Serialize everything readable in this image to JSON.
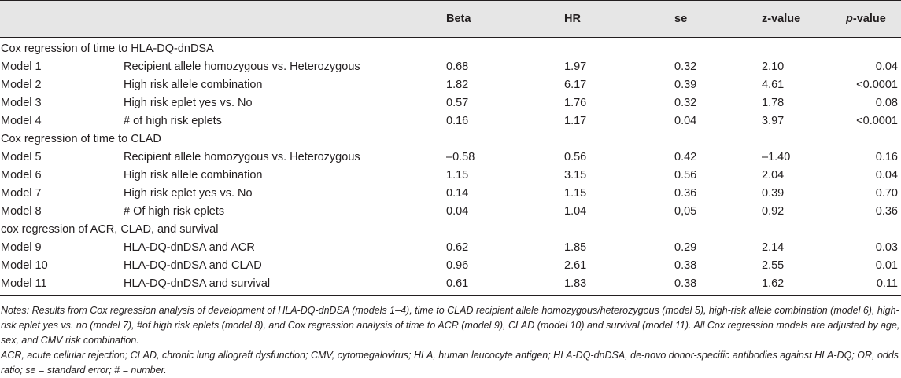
{
  "columns": {
    "beta": "Beta",
    "hr": "HR",
    "se": "se",
    "z": "z-value",
    "p_letter": "p",
    "p_suffix": "-value"
  },
  "sections": [
    {
      "title": "Cox regression of time to HLA-DQ-dnDSA",
      "rows": [
        {
          "model": "Model 1",
          "desc": "Recipient allele homozygous vs. Heterozygous",
          "beta": "0.68",
          "hr": "1.97",
          "se": "0.32",
          "z": "2.10",
          "p": "0.04"
        },
        {
          "model": "Model 2",
          "desc": "High risk allele combination",
          "beta": "1.82",
          "hr": "6.17",
          "se": "0.39",
          "z": "4.61",
          "p": "<0.0001"
        },
        {
          "model": "Model 3",
          "desc": "High risk eplet yes vs. No",
          "beta": "0.57",
          "hr": "1.76",
          "se": "0.32",
          "z": "1.78",
          "p": "0.08"
        },
        {
          "model": "Model 4",
          "desc": "# of high risk eplets",
          "beta": "0.16",
          "hr": "1.17",
          "se": "0.04",
          "z": "3.97",
          "p": "<0.0001"
        }
      ]
    },
    {
      "title": "Cox regression of time to CLAD",
      "rows": [
        {
          "model": "Model 5",
          "desc": "Recipient allele homozygous vs. Heterozygous",
          "beta": "–0.58",
          "hr": "0.56",
          "se": "0.42",
          "z": "–1.40",
          "p": "0.16"
        },
        {
          "model": "Model 6",
          "desc": "High risk allele combination",
          "beta": "1.15",
          "hr": "3.15",
          "se": "0.56",
          "z": "2.04",
          "p": "0.04"
        },
        {
          "model": "Model 7",
          "desc": "High risk eplet yes vs. No",
          "beta": "0.14",
          "hr": "1.15",
          "se": "0.36",
          "z": "0.39",
          "p": "0.70"
        },
        {
          "model": "Model 8",
          "desc": "# Of high risk eplets",
          "beta": "0.04",
          "hr": "1.04",
          "se": "0,05",
          "z": "0.92",
          "p": "0.36"
        }
      ]
    },
    {
      "title": "cox regression of ACR, CLAD, and survival",
      "rows": [
        {
          "model": "Model 9",
          "desc": "HLA-DQ-dnDSA and ACR",
          "beta": "0.62",
          "hr": "1.85",
          "se": "0.29",
          "z": "2.14",
          "p": "0.03"
        },
        {
          "model": "Model 10",
          "desc": "HLA-DQ-dnDSA and CLAD",
          "beta": "0.96",
          "hr": "2.61",
          "se": "0.38",
          "z": "2.55",
          "p": "0.01"
        },
        {
          "model": "Model 11",
          "desc": "HLA-DQ-dnDSA and survival",
          "beta": "0.61",
          "hr": "1.83",
          "se": "0.38",
          "z": "1.62",
          "p": "0.11"
        }
      ]
    }
  ],
  "notes": {
    "main": "Notes: Results from Cox regression analysis of development of HLA-DQ-dnDSA (models 1–4), time to CLAD recipient allele homozygous/heterozygous (model 5), high-risk allele combination (model 6), high-risk eplet yes vs. no (model 7), #of high risk eplets (model 8), and Cox regression analysis of time to ACR (model 9), CLAD (model 10) and survival (model 11). All Cox regression models are adjusted by age, sex, and CMV risk combination.",
    "abbreviations": "ACR, acute cellular rejection; CLAD, chronic lung allograft dysfunction; CMV, cytomegalovirus; HLA, human leucocyte antigen; HLA-DQ-dnDSA, de-novo donor-specific antibodies against HLA-DQ; OR, odds ratio; se = standard error; # = number."
  }
}
